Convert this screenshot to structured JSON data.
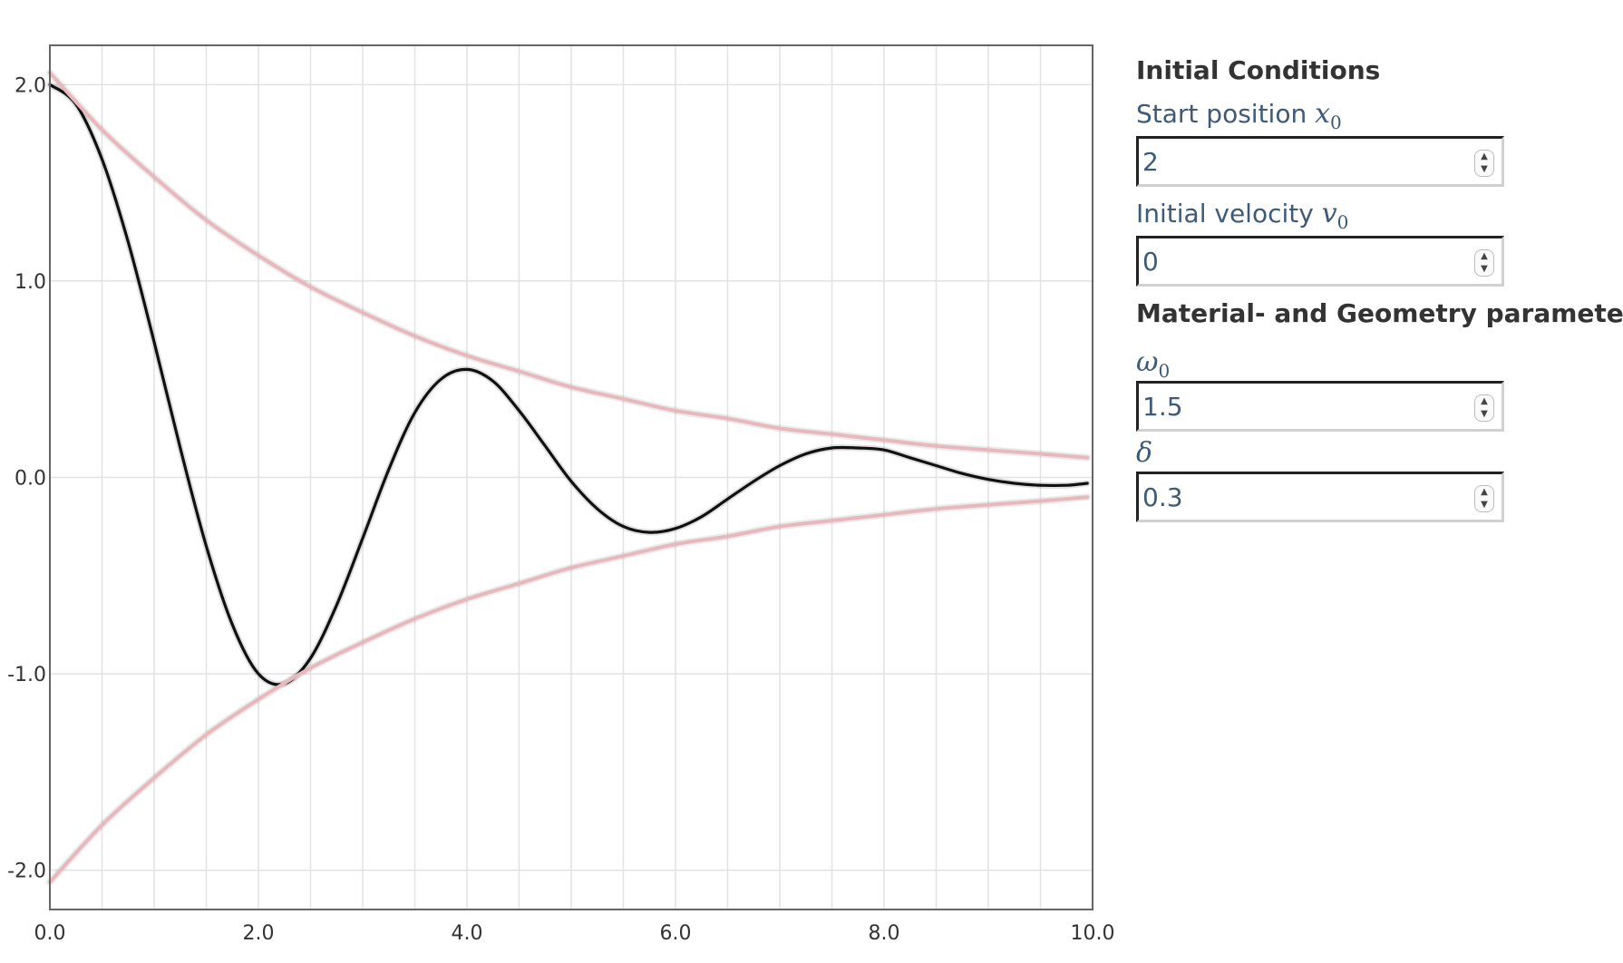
{
  "chart_data": {
    "type": "line",
    "xlim": [
      0,
      10
    ],
    "ylim": [
      -2.2,
      2.2
    ],
    "x_tick_labels": [
      "0.0",
      "2.0",
      "4.0",
      "6.0",
      "8.0",
      "10.0"
    ],
    "y_tick_labels": [
      "2.0",
      "1.0",
      "0.0",
      "-1.0",
      "-2.0"
    ],
    "grid": true,
    "legend": "none",
    "series": [
      {
        "role": "displacement",
        "color": "#111111",
        "x": [
          0.0,
          0.25,
          0.5,
          0.75,
          1.0,
          1.25,
          1.5,
          1.75,
          2.0,
          2.25,
          2.5,
          2.75,
          3.0,
          3.25,
          3.5,
          3.75,
          4.0,
          4.25,
          4.5,
          4.75,
          5.0,
          5.25,
          5.5,
          5.75,
          6.0,
          6.25,
          6.5,
          6.75,
          7.0,
          7.25,
          7.5,
          7.75,
          8.0,
          8.25,
          8.5,
          8.75,
          9.0,
          9.25,
          9.5,
          9.75,
          9.95
        ],
        "y": [
          2.0,
          1.9,
          1.62,
          1.2,
          0.69,
          0.15,
          -0.35,
          -0.75,
          -1.0,
          -1.05,
          -0.92,
          -0.65,
          -0.31,
          0.04,
          0.33,
          0.5,
          0.55,
          0.49,
          0.34,
          0.16,
          -0.02,
          -0.16,
          -0.25,
          -0.28,
          -0.26,
          -0.2,
          -0.11,
          -0.02,
          0.06,
          0.12,
          0.15,
          0.15,
          0.14,
          0.1,
          0.06,
          0.02,
          -0.01,
          -0.03,
          -0.04,
          -0.04,
          -0.03
        ]
      },
      {
        "role": "upper-envelope",
        "color": "#e9b8bc",
        "x": [
          0.0,
          0.5,
          1.0,
          1.5,
          2.0,
          2.5,
          3.0,
          3.5,
          4.0,
          4.5,
          5.0,
          5.5,
          6.0,
          6.5,
          7.0,
          7.5,
          8.0,
          8.5,
          9.0,
          9.5,
          9.95
        ],
        "y": [
          2.06,
          1.77,
          1.53,
          1.31,
          1.13,
          0.97,
          0.84,
          0.72,
          0.62,
          0.54,
          0.46,
          0.4,
          0.34,
          0.3,
          0.25,
          0.22,
          0.19,
          0.16,
          0.14,
          0.12,
          0.1
        ]
      },
      {
        "role": "lower-envelope",
        "color": "#e9b8bc",
        "x": [
          0.0,
          0.5,
          1.0,
          1.5,
          2.0,
          2.5,
          3.0,
          3.5,
          4.0,
          4.5,
          5.0,
          5.5,
          6.0,
          6.5,
          7.0,
          7.5,
          8.0,
          8.5,
          9.0,
          9.5,
          9.95
        ],
        "y": [
          -2.06,
          -1.77,
          -1.53,
          -1.31,
          -1.13,
          -0.97,
          -0.84,
          -0.72,
          -0.62,
          -0.54,
          -0.46,
          -0.4,
          -0.34,
          -0.3,
          -0.25,
          -0.22,
          -0.19,
          -0.16,
          -0.14,
          -0.12,
          -0.1
        ]
      }
    ]
  },
  "panel": {
    "initial_heading": "Initial Conditions",
    "material_heading": "Material- and Geometry parameters",
    "start_position": {
      "label": "Start position",
      "symbol": "x",
      "subscript": "0",
      "value": "2"
    },
    "initial_velocity": {
      "label": "Initial velocity",
      "symbol": "v",
      "subscript": "0",
      "value": "0"
    },
    "omega": {
      "symbol": "ω",
      "subscript": "0",
      "value": "1.5"
    },
    "delta": {
      "symbol": "δ",
      "value": "0.3"
    }
  },
  "colors": {
    "label_blue": "#3d5a78",
    "heading": "#333333",
    "grid": "#e2e2e2",
    "axis_frame": "#666666"
  },
  "icons": {
    "spinner": "up-down-chevron-icon"
  }
}
